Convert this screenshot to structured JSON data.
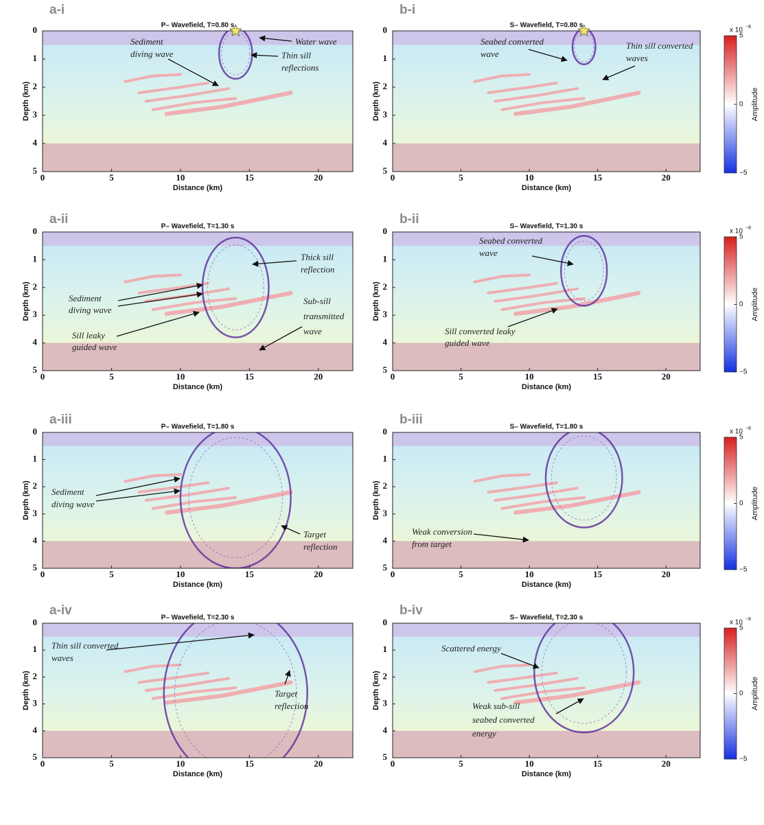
{
  "panels": [
    {
      "label": "a-i",
      "title": "P– Wavefield, T=0.80 s",
      "xlabel": "Distance (km)",
      "ylabel": "Depth (km)",
      "xlim": [
        0,
        22.5
      ],
      "ylim": [
        0,
        5
      ],
      "xticks": [
        0,
        5,
        10,
        15,
        20
      ],
      "yticks": [
        0,
        1,
        2,
        3,
        4,
        5
      ],
      "annotations": [
        [
          "Sediment",
          "diving wave"
        ],
        [
          "Water wave"
        ],
        [
          "Thin sill",
          "reflections"
        ]
      ]
    },
    {
      "label": "b-i",
      "title": "S– Wavefield, T=0.80 s",
      "xlabel": "Distance (km)",
      "ylabel": "Depth (km)",
      "xlim": [
        0,
        22.5
      ],
      "ylim": [
        0,
        5
      ],
      "xticks": [
        0,
        5,
        10,
        15,
        20
      ],
      "yticks": [
        0,
        1,
        2,
        3,
        4,
        5
      ],
      "annotations": [
        [
          "Seabed converted",
          "wave"
        ],
        [
          "Thin sill converted",
          "waves"
        ]
      ]
    },
    {
      "label": "a-ii",
      "title": "P– Wavefield, T=1.30 s",
      "xlabel": "Distance (km)",
      "ylabel": "Depth (km)",
      "xlim": [
        0,
        22.5
      ],
      "ylim": [
        0,
        5
      ],
      "xticks": [
        0,
        5,
        10,
        15,
        20
      ],
      "yticks": [
        0,
        1,
        2,
        3,
        4,
        5
      ],
      "annotations": [
        [
          "Thick sill",
          "reflection"
        ],
        [
          "Sediment",
          "diving wave"
        ],
        [
          "Sill leaky",
          "guided wave"
        ],
        [
          "Sub-sill",
          "transmitted",
          "wave"
        ]
      ]
    },
    {
      "label": "b-ii",
      "title": "S– Wavefield, T=1.30 s",
      "xlabel": "Distance (km)",
      "ylabel": "Depth (km)",
      "xlim": [
        0,
        22.5
      ],
      "ylim": [
        0,
        5
      ],
      "xticks": [
        0,
        5,
        10,
        15,
        20
      ],
      "yticks": [
        0,
        1,
        2,
        3,
        4,
        5
      ],
      "annotations": [
        [
          "Seabed converted",
          "wave"
        ],
        [
          "Sill converted leaky",
          "guided wave"
        ]
      ]
    },
    {
      "label": "a-iii",
      "title": "P– Wavefield, T=1.80 s",
      "xlabel": "Distance (km)",
      "ylabel": "Depth (km)",
      "xlim": [
        0,
        22.5
      ],
      "ylim": [
        0,
        5
      ],
      "xticks": [
        0,
        5,
        10,
        15,
        20
      ],
      "yticks": [
        0,
        1,
        2,
        3,
        4,
        5
      ],
      "annotations": [
        [
          "Sediment",
          "diving wave"
        ],
        [
          "Target",
          "reflection"
        ]
      ]
    },
    {
      "label": "b-iii",
      "title": "S– Wavefield, T=1.80 s",
      "xlabel": "Distance (km)",
      "ylabel": "Depth (km)",
      "xlim": [
        0,
        22.5
      ],
      "ylim": [
        0,
        5
      ],
      "xticks": [
        0,
        5,
        10,
        15,
        20
      ],
      "yticks": [
        0,
        1,
        2,
        3,
        4,
        5
      ],
      "annotations": [
        [
          "Weak conversion",
          "from target"
        ]
      ]
    },
    {
      "label": "a-iv",
      "title": "P– Wavefield, T=2.30 s",
      "xlabel": "Distance (km)",
      "ylabel": "Depth (km)",
      "xlim": [
        0,
        22.5
      ],
      "ylim": [
        0,
        5
      ],
      "xticks": [
        0,
        5,
        10,
        15,
        20
      ],
      "yticks": [
        0,
        1,
        2,
        3,
        4,
        5
      ],
      "annotations": [
        [
          "Thin sill converted",
          "waves"
        ],
        [
          "Target",
          "reflection"
        ]
      ]
    },
    {
      "label": "b-iv",
      "title": "S– Wavefield, T=2.30 s",
      "xlabel": "Distance (km)",
      "ylabel": "Depth (km)",
      "xlim": [
        0,
        22.5
      ],
      "ylim": [
        0,
        5
      ],
      "xticks": [
        0,
        5,
        10,
        15,
        20
      ],
      "yticks": [
        0,
        1,
        2,
        3,
        4,
        5
      ],
      "annotations": [
        [
          "Scattered energy"
        ],
        [
          "Weak sub-sill",
          "seabed converted",
          "energy"
        ]
      ]
    }
  ],
  "colorbars": [
    {
      "label": "Amplitude",
      "multiplier": "x 10",
      "exponent": "−8",
      "lim": [
        -5,
        5
      ],
      "ticks": [
        5,
        0,
        {
          "value": -5,
          "label": "−5"
        }
      ]
    },
    {
      "label": "Amplitude",
      "multiplier": "x 10",
      "exponent": "−8",
      "lim": [
        -5,
        5
      ],
      "ticks": [
        5,
        0,
        {
          "value": -5,
          "label": "−5"
        }
      ]
    },
    {
      "label": "Amplitude",
      "multiplier": "x 10",
      "exponent": "−8",
      "lim": [
        -5,
        5
      ],
      "ticks": [
        5,
        0,
        {
          "value": -5,
          "label": "−5"
        }
      ]
    },
    {
      "label": "Amplitude",
      "multiplier": "x 10",
      "exponent": "−8",
      "lim": [
        -5,
        5
      ],
      "ticks": [
        5,
        0,
        {
          "value": -5,
          "label": "−5"
        }
      ]
    }
  ]
}
